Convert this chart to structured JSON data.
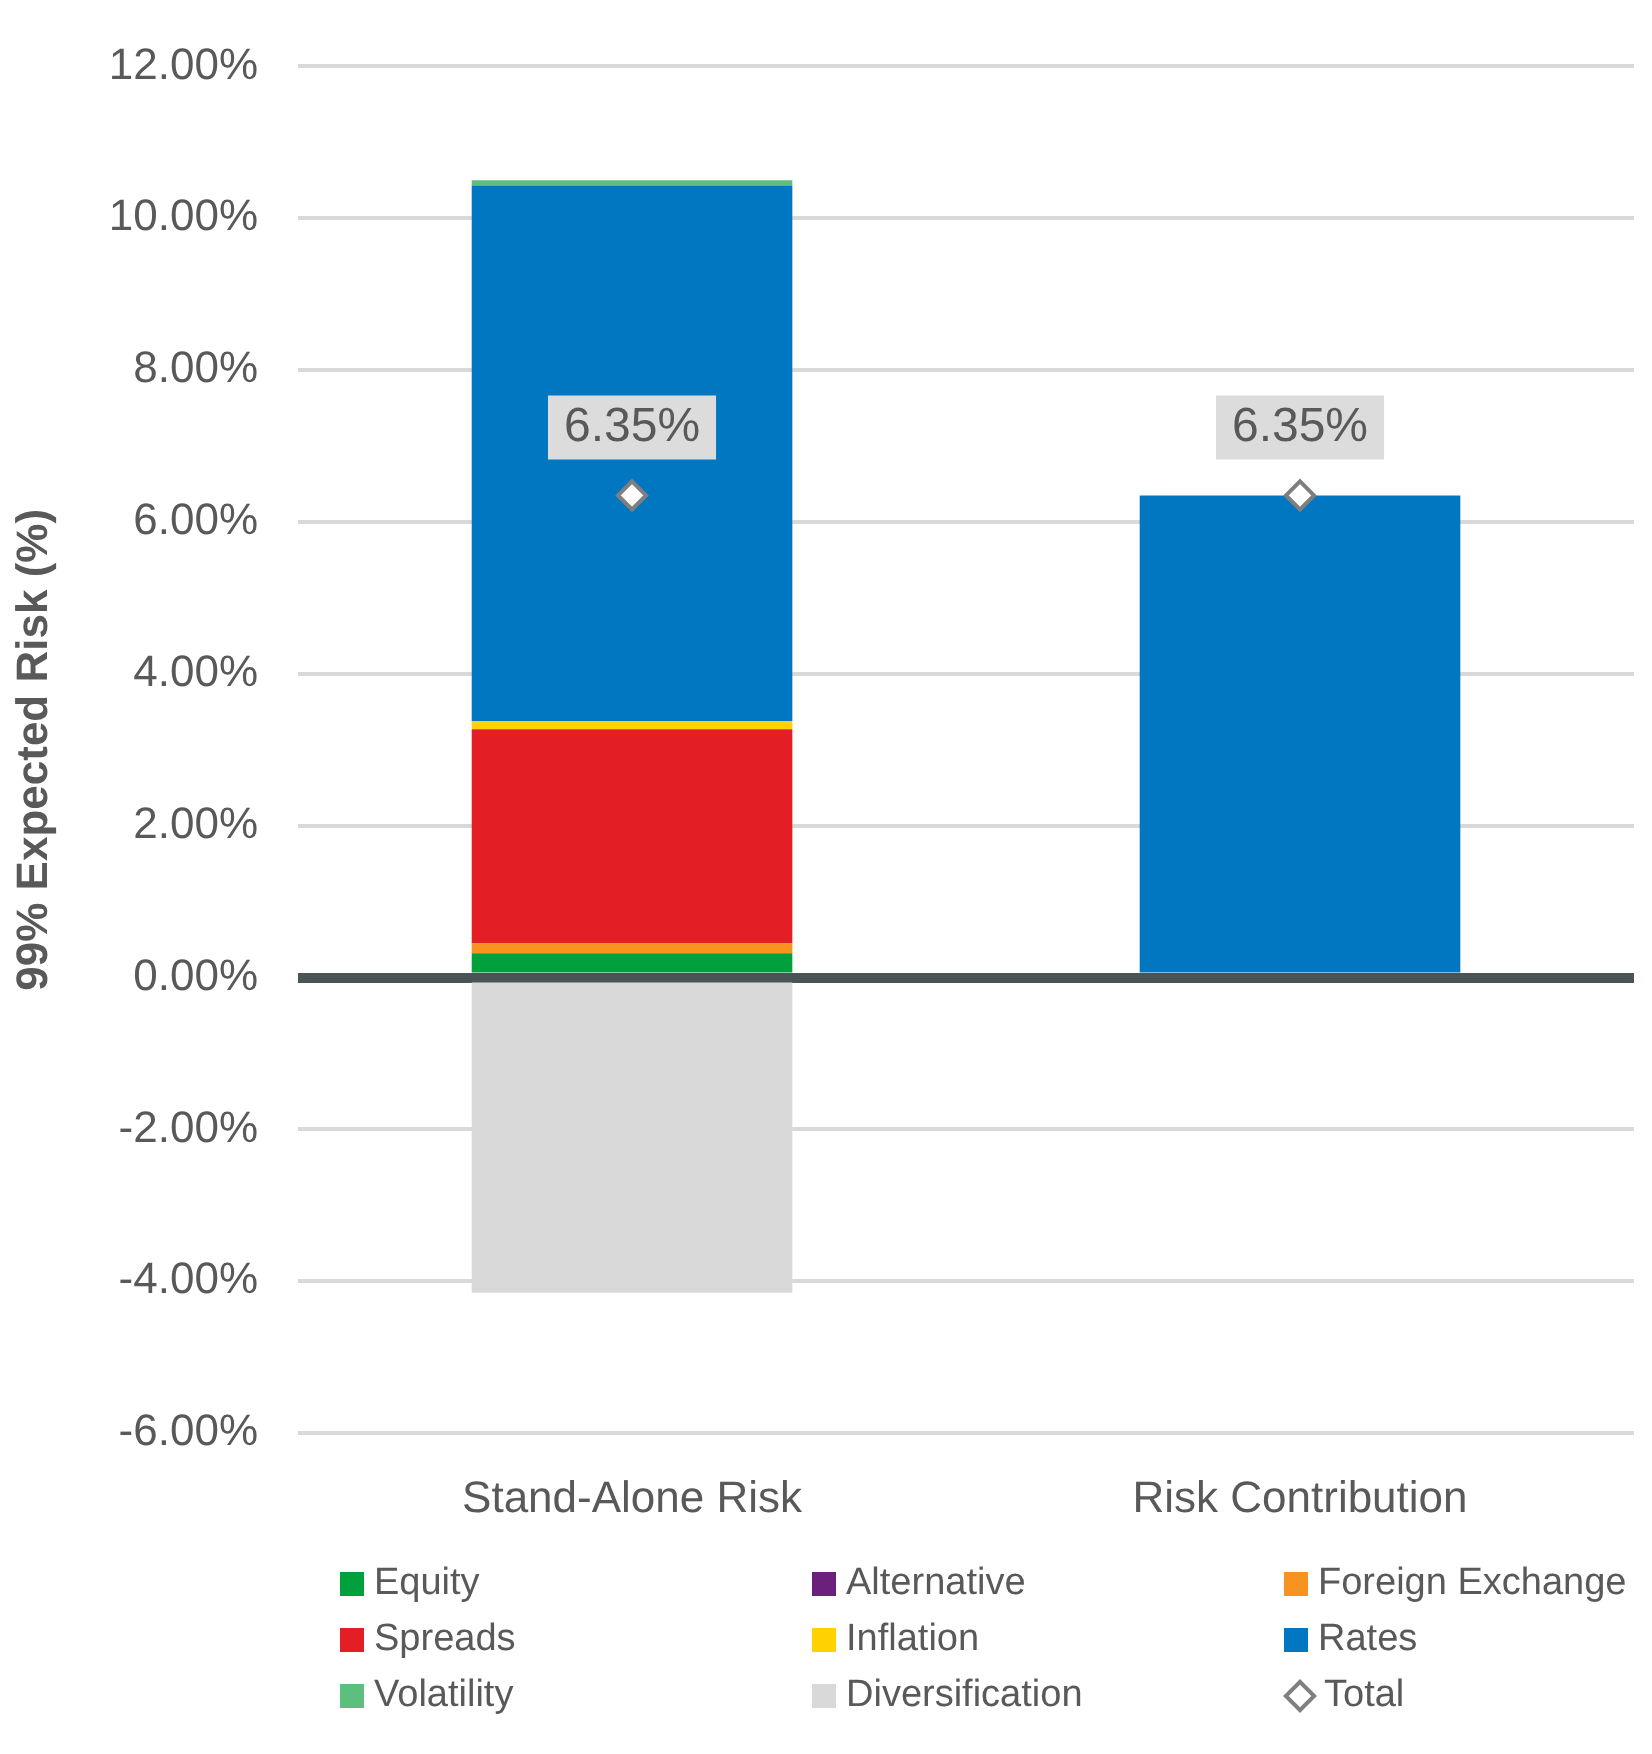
{
  "chart_data": {
    "type": "bar",
    "stacked": true,
    "ylabel": "99% Expected Risk (%)",
    "categories": [
      "Stand-Alone Risk",
      "Risk Contribution"
    ],
    "series": [
      {
        "name": "Equity",
        "color": "#00a03c",
        "values": [
          0.32,
          0
        ]
      },
      {
        "name": "Alternative",
        "color": "#6c1f7d",
        "values": [
          0,
          0
        ]
      },
      {
        "name": "Foreign Exchange",
        "color": "#f7931e",
        "values": [
          0.13,
          0
        ]
      },
      {
        "name": "Spreads",
        "color": "#e31e24",
        "values": [
          2.82,
          0
        ]
      },
      {
        "name": "Inflation",
        "color": "#ffd200",
        "values": [
          0.11,
          0
        ]
      },
      {
        "name": "Rates",
        "color": "#0077c0",
        "values": [
          7.05,
          6.35
        ]
      },
      {
        "name": "Volatility",
        "color": "#5cbf7e",
        "values": [
          0.07,
          0
        ]
      },
      {
        "name": "Diversification",
        "color": "#d9d9d9",
        "values": [
          -4.15,
          0
        ]
      },
      {
        "name": "Total",
        "type": "scatter",
        "marker": "diamond",
        "color": "#7f7f7f",
        "values": [
          6.35,
          6.35
        ],
        "value_labels": [
          "6.35%",
          "6.35%"
        ]
      }
    ],
    "ylim": [
      -6,
      12
    ],
    "yticks": [
      {
        "value": -6,
        "label": "-6.00%"
      },
      {
        "value": -4,
        "label": "-4.00%"
      },
      {
        "value": -2,
        "label": "-2.00%"
      },
      {
        "value": 0,
        "label": "0.00%"
      },
      {
        "value": 2,
        "label": "2.00%"
      },
      {
        "value": 4,
        "label": "4.00%"
      },
      {
        "value": 6,
        "label": "6.00%"
      },
      {
        "value": 8,
        "label": "8.00%"
      },
      {
        "value": 10,
        "label": "10.00%"
      },
      {
        "value": 12,
        "label": "12.00%"
      }
    ],
    "grid": "y",
    "legend": "bottom"
  }
}
